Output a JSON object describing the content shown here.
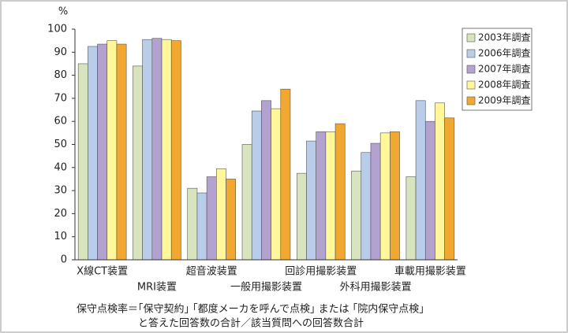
{
  "chart_data": {
    "type": "bar",
    "y_label": "%",
    "categories": [
      "X線CT装置",
      "MRI装置",
      "超音波装置",
      "一般用撮影装置",
      "回診用撮影装置",
      "外科用撮影装置",
      "車載用撮影装置"
    ],
    "series": [
      {
        "name": "2003年調査",
        "color": "#d7e4bd",
        "values": [
          85,
          84,
          31,
          50,
          37.5,
          38.5,
          36
        ]
      },
      {
        "name": "2006年調査",
        "color": "#b9cdea",
        "values": [
          92.5,
          95.5,
          29,
          64.5,
          51.5,
          46.5,
          69
        ]
      },
      {
        "name": "2007年調査",
        "color": "#b3a2cf",
        "values": [
          93.5,
          96,
          36,
          69,
          55.5,
          50.5,
          60
        ]
      },
      {
        "name": "2008年調査",
        "color": "#fff799",
        "values": [
          95,
          95.5,
          39.5,
          65.5,
          55.5,
          55,
          68
        ]
      },
      {
        "name": "2009年調査",
        "color": "#f0a830",
        "values": [
          93.5,
          95,
          35,
          74,
          59,
          55.5,
          61.5
        ]
      }
    ],
    "ylim": [
      0,
      100
    ],
    "yticks": [
      0,
      10,
      20,
      30,
      40,
      50,
      60,
      70,
      80,
      90,
      100
    ],
    "grid": false,
    "legend": "right",
    "note": [
      "保守点検率＝｢保守契約｣ ｢都度メーカを呼んで点検｣ または ｢院内保守点検｣",
      "と答えた回答数の合計／該当質問への回答数合計"
    ]
  }
}
